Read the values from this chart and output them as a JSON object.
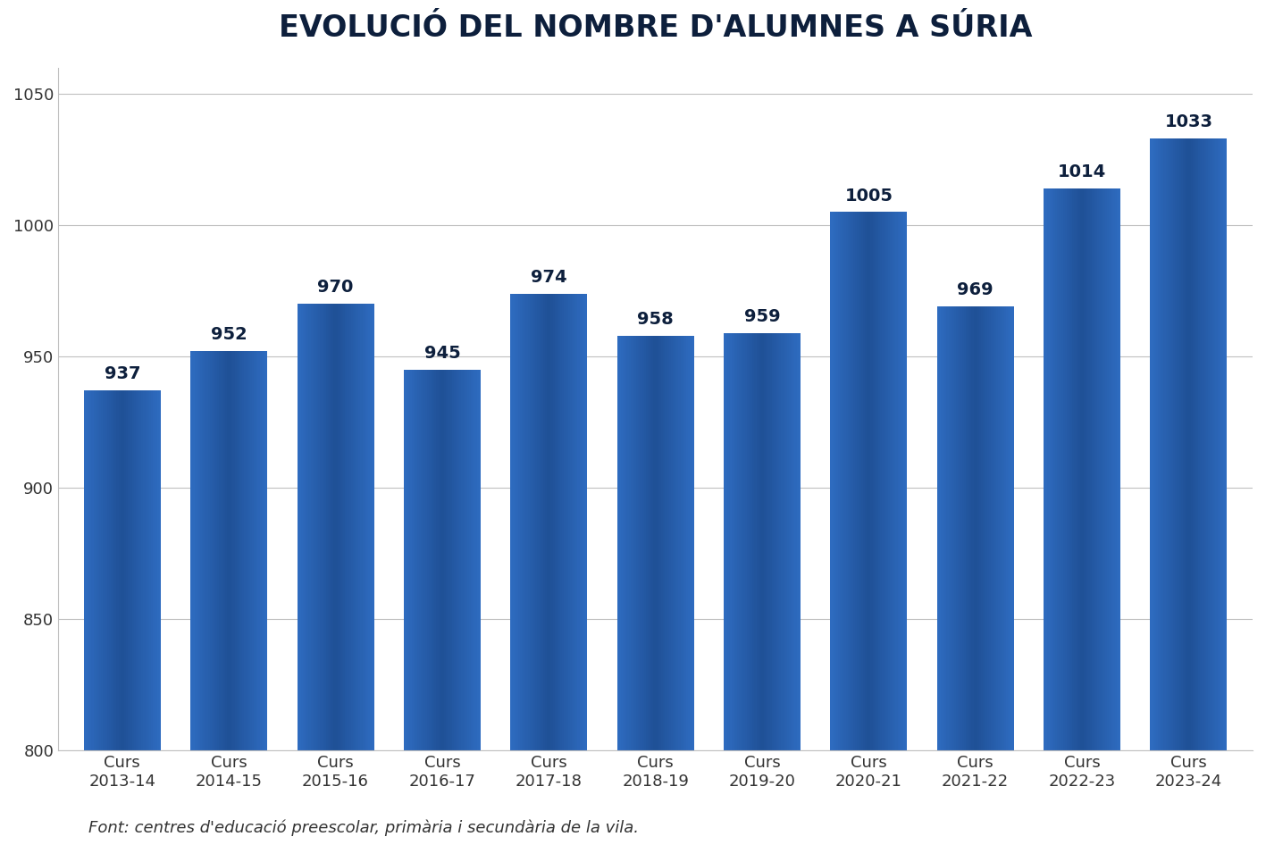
{
  "title": "EVOLUCIÓ DEL NOMBRE D'ALUMNES A SÚRIA",
  "categories": [
    "Curs\n2013-14",
    "Curs\n2014-15",
    "Curs\n2015-16",
    "Curs\n2016-17",
    "Curs\n2017-18",
    "Curs\n2018-19",
    "Curs\n2019-20",
    "Curs\n2020-21",
    "Curs\n2021-22",
    "Curs\n2022-23",
    "Curs\n2023-24"
  ],
  "values": [
    937,
    952,
    970,
    945,
    974,
    958,
    959,
    1005,
    969,
    1014,
    1033
  ],
  "bar_color_main": "#1f5096",
  "bar_color_light": "#2e6bbf",
  "bar_color_dark": "#163a70",
  "ylim": [
    800,
    1060
  ],
  "yticks": [
    800,
    850,
    900,
    950,
    1000,
    1050
  ],
  "background_color": "#ffffff",
  "title_fontsize": 24,
  "tick_fontsize": 13,
  "bar_label_fontsize": 14,
  "footnote": "Font: centres d'educació preescolar, primària i secundària de la vila.",
  "footnote_fontsize": 13,
  "title_color": "#0d1f3c",
  "bar_label_color": "#0d1f3c",
  "tick_color": "#333333",
  "grid_color": "#c0c0c0",
  "bar_width": 0.72
}
